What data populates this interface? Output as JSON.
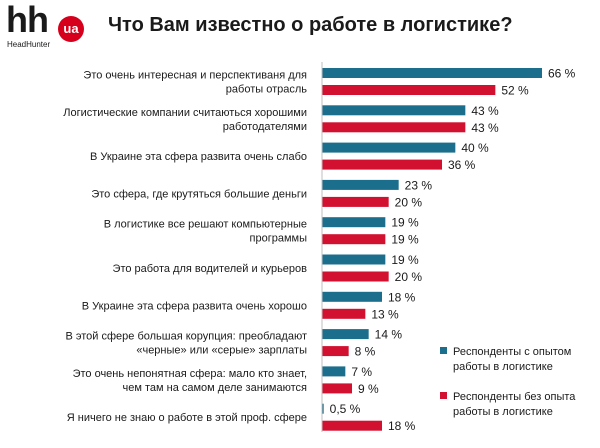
{
  "header": {
    "logo_text": "hh",
    "logo_badge": "ua",
    "logo_sub": "HeadHunter",
    "title": "Что Вам известно о работе в логистике?"
  },
  "colors": {
    "series_experienced": "#1b6e8c",
    "series_no_experience": "#d2102f",
    "brand_red": "#d6001c"
  },
  "chart_data": {
    "type": "bar",
    "orientation": "horizontal",
    "title": "Что Вам известно о работе в логистике?",
    "categories": [
      [
        "Это очень интересная и перспективаня для",
        "работы отрасль"
      ],
      [
        "Логистические компании считаються хорошими",
        "работодателями"
      ],
      [
        "В Украине эта сфера развита очень слабо"
      ],
      [
        "Это сфера, где крутяться большие деньги"
      ],
      [
        "В логистике все решают компьютерные",
        "программы"
      ],
      [
        "Это работа для водителей и курьеров"
      ],
      [
        "В Украине эта сфера развита очень хорошо"
      ],
      [
        "В этой сфере большая корупция: преобладают",
        "«черные» или «серые» зарплаты"
      ],
      [
        "Это очень непонятная сфера: мало кто знает,",
        "чем там на самом деле занимаются"
      ],
      [
        "Я ничего не знаю о работе в этой проф. сфере"
      ]
    ],
    "series": [
      {
        "name": [
          "Респонденты с опытом",
          "работы в логистике"
        ],
        "values": [
          66,
          43,
          40,
          23,
          19,
          19,
          18,
          14,
          7,
          0.5
        ],
        "labels": [
          "66 %",
          "43 %",
          "40 %",
          "23 %",
          "19 %",
          "19 %",
          "18 %",
          "14 %",
          "7 %",
          "0,5 %"
        ]
      },
      {
        "name": [
          "Респонденты без опыта",
          "работы в логистике"
        ],
        "values": [
          52,
          43,
          36,
          20,
          19,
          20,
          13,
          8,
          9,
          18
        ],
        "labels": [
          "52 %",
          "43 %",
          "36 %",
          "20 %",
          "19 %",
          "20 %",
          "13 %",
          "8 %",
          "9 %",
          "18 %"
        ]
      }
    ],
    "xlim": [
      0,
      66
    ],
    "legend_position": "bottom-right",
    "grid": false
  }
}
